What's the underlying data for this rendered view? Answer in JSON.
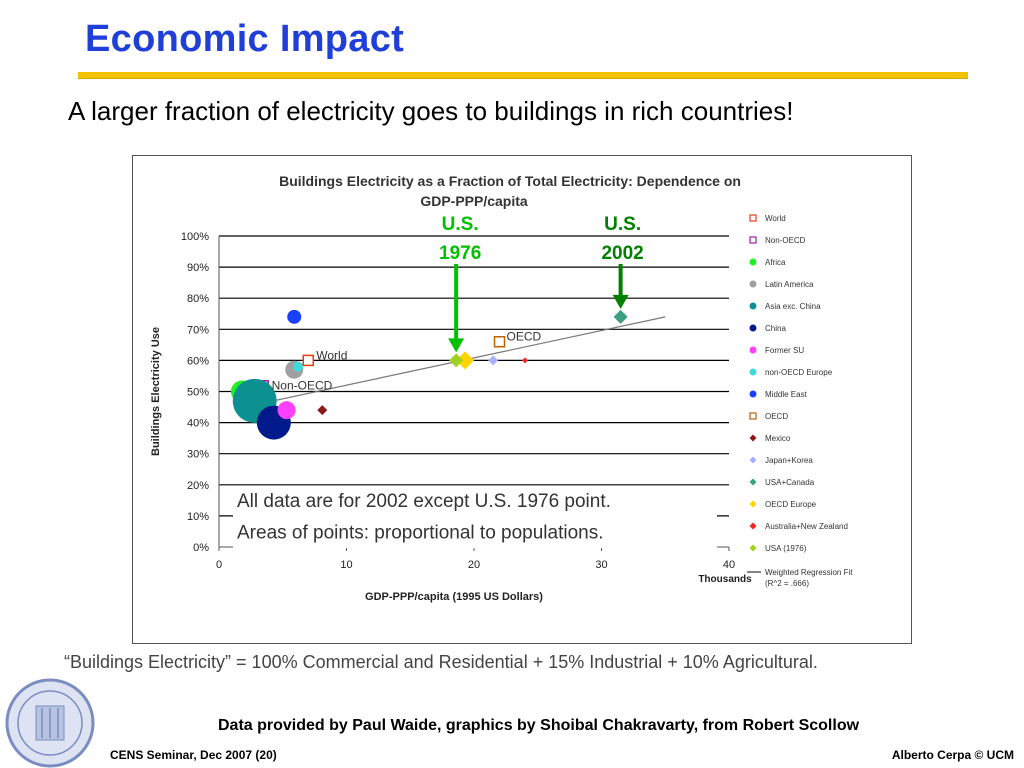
{
  "slide": {
    "title": "Economic Impact",
    "subtitle": "A larger fraction of electricity goes to buildings in rich countries!",
    "definition": "“Buildings Electricity” = 100% Commercial and Residential + 15% Industrial + 10% Agricultural.",
    "credits": "Data provided by Paul Waide, graphics by Shoibal Chakravarty, from Robert Scollow",
    "footer_left": "CENS Seminar, Dec 2007 (20)",
    "footer_right": "Alberto Cerpa © UCM",
    "accent_color": "#1f3fd8",
    "rule_color": "#f2c200"
  },
  "chart_data": {
    "type": "scatter",
    "title_line1": "Buildings Electricity as a Fraction of  Total  Electricity: Dependence on",
    "title_line2": "GDP-PPP/capita",
    "xlabel": "GDP-PPP/capita (1995  US  Dollars)",
    "xunit": "Thousands",
    "ylabel": "Buildings Electricity Use",
    "xlim": [
      0,
      40
    ],
    "ylim": [
      0,
      100
    ],
    "xticks": [
      "0",
      "10",
      "20",
      "30",
      "40"
    ],
    "yticks": [
      "0%",
      "10%",
      "20%",
      "30%",
      "40%",
      "50%",
      "60%",
      "70%",
      "80%",
      "90%",
      "100%"
    ],
    "grid": "horizontal",
    "legend_position": "right",
    "series": [
      {
        "name": "World",
        "color": "#e04010",
        "marker": "square-open",
        "x": 7,
        "y": 60
      },
      {
        "name": "Non-OECD",
        "color": "#a01aa0",
        "marker": "square-open",
        "x": 3.5,
        "y": 52
      },
      {
        "name": "Africa",
        "color": "#22ee22",
        "marker": "circle",
        "x": 1.8,
        "y": 50
      },
      {
        "name": "Latin America",
        "color": "#a0a0a0",
        "marker": "circle",
        "x": 5.9,
        "y": 57
      },
      {
        "name": "Asia exc. China",
        "color": "#0d9090",
        "marker": "circle",
        "x": 2.8,
        "y": 47
      },
      {
        "name": "China",
        "color": "#001a8c",
        "marker": "circle",
        "x": 4.3,
        "y": 40
      },
      {
        "name": "Former SU",
        "color": "#ff40ff",
        "marker": "circle",
        "x": 5.3,
        "y": 44
      },
      {
        "name": "non-OECD Europe",
        "color": "#40d8d8",
        "marker": "circle",
        "x": 6.2,
        "y": 58
      },
      {
        "name": "Middle East",
        "color": "#1a40ff",
        "marker": "circle",
        "x": 5.9,
        "y": 74
      },
      {
        "name": "OECD",
        "color": "#c06000",
        "marker": "square-open",
        "x": 22,
        "y": 66
      },
      {
        "name": "Mexico",
        "color": "#8b1a1a",
        "marker": "diamond",
        "x": 8.1,
        "y": 44
      },
      {
        "name": "Japan+Korea",
        "color": "#a8b0ff",
        "marker": "diamond",
        "x": 21.5,
        "y": 60
      },
      {
        "name": "USA+Canada",
        "color": "#3aa080",
        "marker": "diamond",
        "x": 31.5,
        "y": 74
      },
      {
        "name": "OECD Europe",
        "color": "#ffd400",
        "marker": "diamond",
        "x": 19.3,
        "y": 60
      },
      {
        "name": "Australia+New  Zealand",
        "color": "#ff2020",
        "marker": "diamond",
        "x": 24,
        "y": 60
      },
      {
        "name": "USA (1976)",
        "color": "#a0d020",
        "marker": "diamond",
        "x": 18.6,
        "y": 60
      }
    ],
    "regression": {
      "name": "Weighted Regression Fit",
      "name_line2": "(R^2 = .666)",
      "x": [
        2,
        35
      ],
      "y": [
        45,
        74
      ]
    },
    "point_labels": [
      {
        "text": "World",
        "series": "World"
      },
      {
        "text": "Non-OECD",
        "series": "Non-OECD"
      },
      {
        "text": "OECD",
        "series": "OECD"
      }
    ],
    "annotations": [
      {
        "line1": "U.S.",
        "line2": "1976",
        "x": 18.6,
        "y": 60,
        "color": "#00c000"
      },
      {
        "line1": "U.S.",
        "line2": "2002",
        "x": 31.5,
        "y": 74,
        "color": "#008000"
      }
    ],
    "note_line1": "All data are for 2002 except U.S. 1976 point.",
    "note_line2": "Areas of points: proportional to populations."
  }
}
